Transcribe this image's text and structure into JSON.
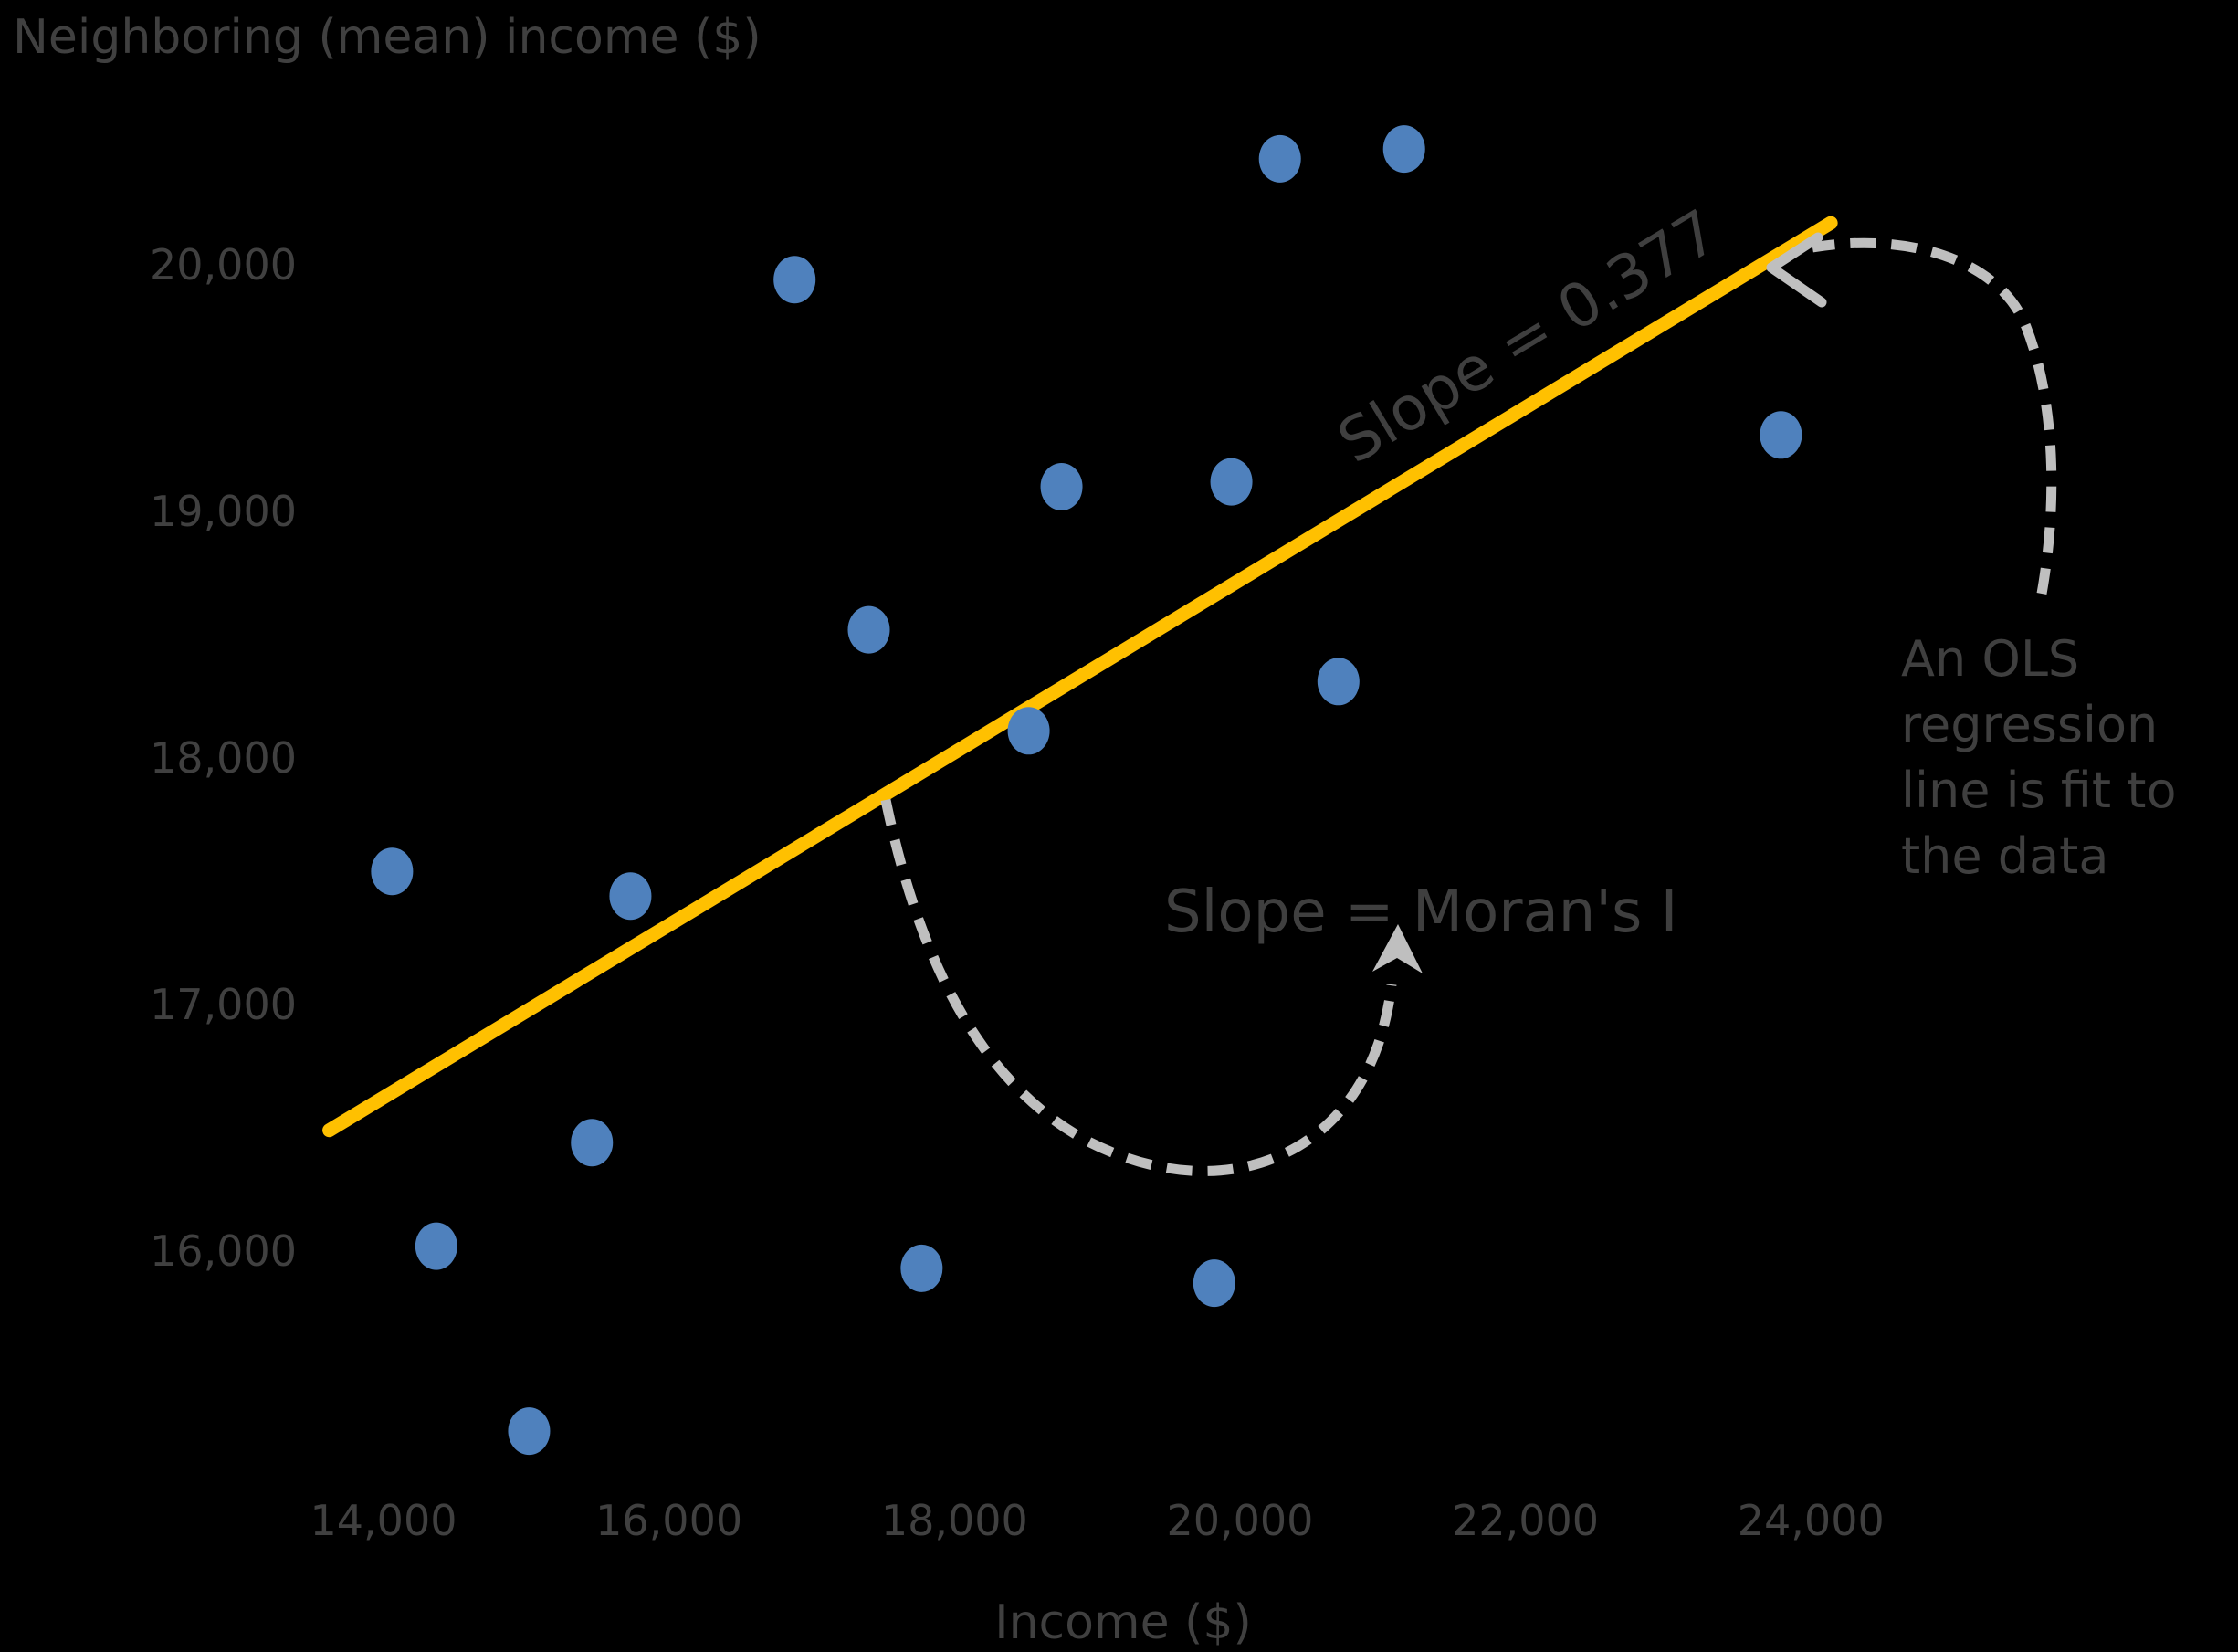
{
  "colors": {
    "background": "#000000",
    "point": "#4f81bd",
    "regression_line": "#ffc000",
    "annotation_arrow": "#bfbfbf",
    "axis_text": "#404040",
    "annotation_text": "#3f3f3f"
  },
  "chart_data": {
    "type": "scatter",
    "title": "",
    "ylabel": "Neighboring (mean) income ($)",
    "xlabel": "Income ($)",
    "grid": false,
    "legend": false,
    "x_axis_range_approx": [
      13000,
      25200
    ],
    "y_axis_range_approx": [
      14800,
      20900
    ],
    "x_ticks": [
      {
        "v": 14000,
        "label": "14,000"
      },
      {
        "v": 16000,
        "label": "16,000"
      },
      {
        "v": 18000,
        "label": "18,000"
      },
      {
        "v": 20000,
        "label": "20,000"
      },
      {
        "v": 22000,
        "label": "22,000"
      },
      {
        "v": 24000,
        "label": "24,000"
      }
    ],
    "y_ticks": [
      {
        "v": 20000,
        "label": "20,000"
      },
      {
        "v": 19000,
        "label": "19,000"
      },
      {
        "v": 18000,
        "label": "18,000"
      },
      {
        "v": 17000,
        "label": "17,000"
      },
      {
        "v": 16000,
        "label": "16,000"
      }
    ],
    "points": [
      {
        "x": 20280,
        "y": 20430
      },
      {
        "x": 21150,
        "y": 20470
      },
      {
        "x": 16880,
        "y": 19940
      },
      {
        "x": 18750,
        "y": 19100
      },
      {
        "x": 19940,
        "y": 19120
      },
      {
        "x": 23790,
        "y": 19310
      },
      {
        "x": 17400,
        "y": 18520
      },
      {
        "x": 20690,
        "y": 18310
      },
      {
        "x": 18520,
        "y": 18110
      },
      {
        "x": 14060,
        "y": 17540
      },
      {
        "x": 15730,
        "y": 17440
      },
      {
        "x": 15460,
        "y": 16440
      },
      {
        "x": 14370,
        "y": 16020
      },
      {
        "x": 17770,
        "y": 15930
      },
      {
        "x": 19820,
        "y": 15870
      },
      {
        "x": 15020,
        "y": 15270
      }
    ],
    "regression_line": {
      "x1": 13620,
      "y1": 16490,
      "x2": 24140,
      "y2": 20170,
      "label": "Slope = 0.377",
      "slope_value": 0.377
    },
    "annotations": {
      "slope_morans": "Slope = Moran's I",
      "ols_note_lines": [
        "An OLS",
        "regression",
        "line is fit to",
        "the data"
      ]
    }
  }
}
